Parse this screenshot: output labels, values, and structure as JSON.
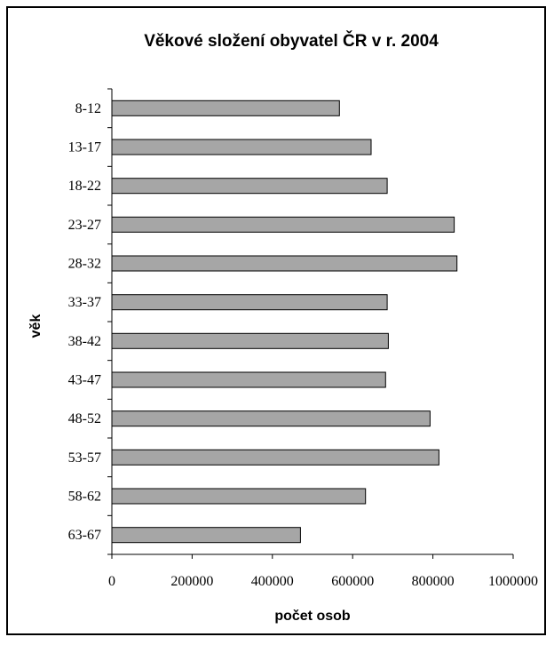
{
  "chart_data": {
    "type": "bar",
    "orientation": "horizontal",
    "title": "Věkové složení obyvatel ČR v r. 2004",
    "xlabel": "počet osob",
    "ylabel": "věk",
    "categories": [
      "8-12",
      "13-17",
      "18-22",
      "23-27",
      "28-32",
      "33-37",
      "38-42",
      "43-47",
      "48-52",
      "53-57",
      "58-62",
      "63-67"
    ],
    "values": [
      567000,
      646000,
      686000,
      853000,
      860000,
      686000,
      689000,
      682000,
      793000,
      815000,
      632000,
      470000
    ],
    "xlim": [
      0,
      1000000
    ],
    "x_ticks": [
      "0",
      "200000",
      "400000",
      "600000",
      "800000",
      "1000000"
    ],
    "grid": false,
    "colors": {
      "bar_fill": "#a6a6a6",
      "bar_stroke": "#000000"
    }
  }
}
